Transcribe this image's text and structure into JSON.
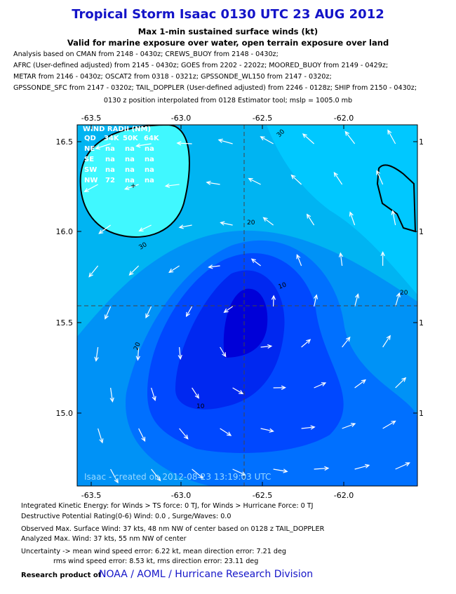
{
  "header": {
    "title": "Tropical Storm Isaac 0130 UTC 23 AUG 2012",
    "subtitles": [
      "Max 1-min sustained surface winds (kt)",
      "Valid for marine exposure over water, open terrain exposure over land"
    ]
  },
  "analysis_lines": [
    "Analysis based on CMAN from 2148 - 0430z; CREWS_BUOY from 2148 - 0430z;",
    "AFRC (User-defined adjusted) from 2145 - 0430z; GOES from 2202 - 2202z; MOORED_BUOY from 2149 - 0429z;",
    "METAR from 2146 - 0430z; OSCAT2 from 0318 - 0321z; GPSSONDE_WL150 from 2147 - 0320z;",
    "GPSSONDE_SFC from 2147 - 0320z; TAIL_DOPPLER (User-defined adjusted) from 2246 - 0128z; SHIP from 2150 - 0430z;",
    "0130 z position interpolated from 0128 Estimator tool; mslp = 1005.0 mb"
  ],
  "map": {
    "x_tick_labels": [
      "-63.5",
      "-63.0",
      "-62.5",
      "-62.0"
    ],
    "y_tick_labels": [
      "16.5",
      "16.0",
      "15.5",
      "15.0"
    ],
    "right_tick_labels": [
      "1",
      "1",
      "1",
      "1"
    ],
    "wind_radii": {
      "title": "WIND RADII (NM)",
      "header": [
        "QD",
        "34K",
        "50K",
        "64K"
      ],
      "rows": [
        [
          "NE",
          "na",
          "na",
          "na"
        ],
        [
          "SE",
          "na",
          "na",
          "na"
        ],
        [
          "SW",
          "na",
          "na",
          "na"
        ],
        [
          "NW",
          "72",
          "na",
          "na"
        ]
      ]
    },
    "contour_labels": [
      "30",
      "30",
      "20",
      "20",
      "20",
      "10",
      "10"
    ],
    "watermark": "Isaac - created on 2012-08-23 13:19:03 UTC"
  },
  "footer": {
    "lines": [
      "Integrated Kinetic Energy: for Winds > TS force: 0 TJ, for Winds > Hurricane Force: 0 TJ",
      "Destructive Potential Rating(0-6)  Wind: 0.0 , Surge/Waves: 0.0",
      "Observed Max. Surface Wind: 37 kts, 48 nm NW of center based on 0128 z TAIL_DOPPLER",
      "Analyzed Max. Wind: 37 kts, 55 nm  NW of center",
      "Uncertainty -> mean wind speed error: 6.22 kt, mean direction error: 7.21 deg",
      "rms wind speed error: 8.53 kt, rms direction error: 23.11 deg"
    ],
    "credit_prefix": "Research product of",
    "credit_link": "NOAA / AOML / Hurricane Research Division"
  }
}
